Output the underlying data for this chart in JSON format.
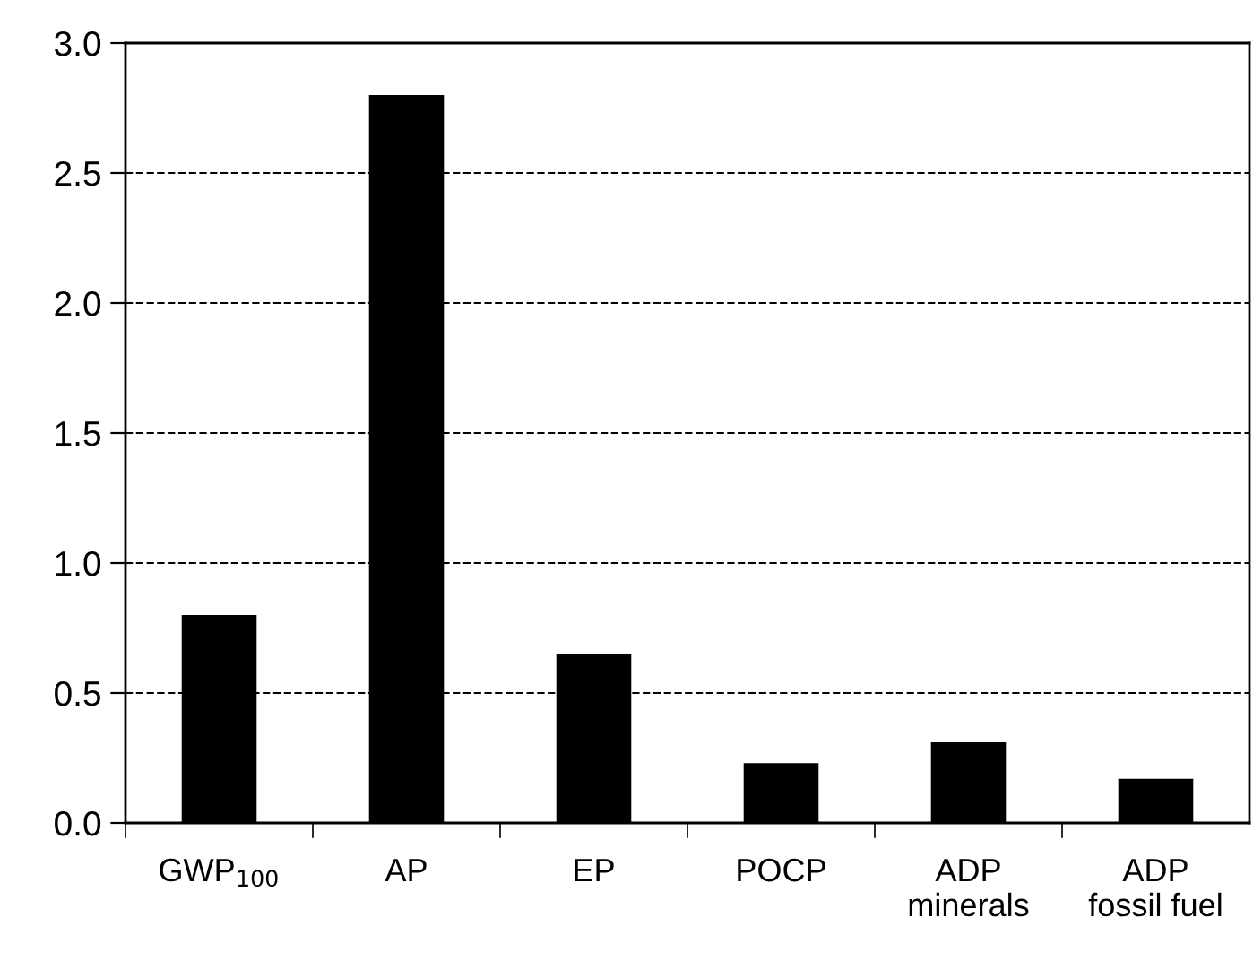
{
  "chart_data": {
    "type": "bar",
    "categories": [
      "GWP$_{100}$",
      "AP",
      "EP",
      "POCP",
      "ADP\nminerals",
      "ADP\nfossil fuel"
    ],
    "values": [
      0.8,
      2.8,
      0.65,
      0.23,
      0.31,
      0.17
    ],
    "color": "#000000",
    "ylim": [
      0,
      3.0
    ],
    "yticks": [
      {
        "value": 0,
        "label": "0.0"
      },
      {
        "value": 0.5,
        "label": "0.5"
      },
      {
        "value": 1,
        "label": "1.0"
      },
      {
        "value": 1.5,
        "label": "1.5"
      },
      {
        "value": 2,
        "label": "2.0"
      },
      {
        "value": 2.5,
        "label": "2.5"
      },
      {
        "value": 3,
        "label": "3.0"
      }
    ],
    "grid": "y",
    "line_style": "dashed",
    "legend": false
  }
}
